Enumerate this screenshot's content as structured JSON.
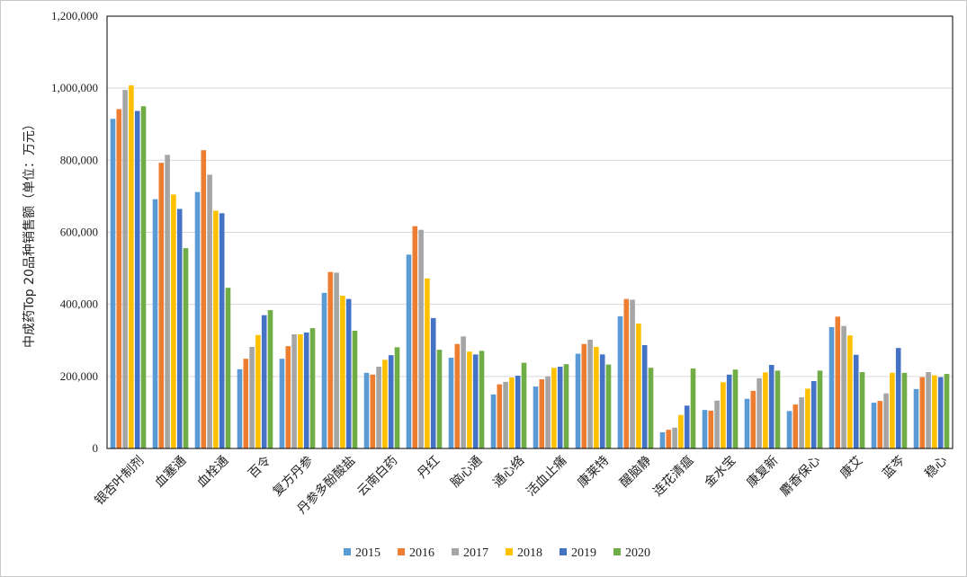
{
  "chart_data": {
    "type": "bar",
    "title": "",
    "xlabel": "",
    "ylabel": "中成药Top 20品种销售额（单位：万元）",
    "ylim": [
      0,
      1200000
    ],
    "yticks": [
      0,
      200000,
      400000,
      600000,
      800000,
      1000000,
      1200000
    ],
    "ytick_labels": [
      "0",
      "200,000",
      "400,000",
      "600,000",
      "800,000",
      "1,000,000",
      "1,200,000"
    ],
    "grid": true,
    "legend_position": "bottom",
    "categories": [
      "银杏叶制剂",
      "血塞通",
      "血栓通",
      "百令",
      "复方丹参",
      "丹参多酚酸盐",
      "云南白药",
      "丹红",
      "脑心通",
      "通心络",
      "活血止痛",
      "康莱特",
      "醒脑静",
      "连花清瘟",
      "金水宝",
      "康复新",
      "麝香保心",
      "康艾",
      "蓝芩",
      "稳心"
    ],
    "series": [
      {
        "name": "2015",
        "color": "#5b9bd5",
        "values": [
          915000,
          692000,
          712000,
          220000,
          249000,
          432000,
          210000,
          538000,
          252000,
          150000,
          172000,
          263000,
          367000,
          45000,
          107000,
          138000,
          104000,
          337000,
          127000,
          165000
        ]
      },
      {
        "name": "2016",
        "color": "#ed7d31",
        "values": [
          942000,
          793000,
          828000,
          249000,
          284000,
          490000,
          205000,
          617000,
          290000,
          178000,
          192000,
          290000,
          415000,
          52000,
          105000,
          160000,
          122000,
          366000,
          132000,
          198000
        ]
      },
      {
        "name": "2017",
        "color": "#a5a5a5",
        "values": [
          995000,
          815000,
          760000,
          282000,
          317000,
          488000,
          227000,
          607000,
          311000,
          185000,
          200000,
          302000,
          413000,
          58000,
          133000,
          195000,
          142000,
          340000,
          153000,
          212000
        ]
      },
      {
        "name": "2018",
        "color": "#ffc000",
        "values": [
          1008000,
          705000,
          660000,
          315000,
          317000,
          424000,
          246000,
          472000,
          269000,
          197000,
          224000,
          282000,
          347000,
          93000,
          184000,
          211000,
          166000,
          314000,
          210000,
          203000
        ]
      },
      {
        "name": "2019",
        "color": "#4472c4",
        "values": [
          937000,
          665000,
          653000,
          370000,
          322000,
          415000,
          259000,
          362000,
          261000,
          202000,
          227000,
          261000,
          287000,
          119000,
          205000,
          232000,
          187000,
          260000,
          279000,
          198000
        ]
      },
      {
        "name": "2020",
        "color": "#70ad47",
        "values": [
          950000,
          556000,
          446000,
          384000,
          334000,
          327000,
          281000,
          274000,
          271000,
          238000,
          234000,
          233000,
          224000,
          222000,
          219000,
          216000,
          216000,
          212000,
          210000,
          207000
        ]
      }
    ]
  }
}
